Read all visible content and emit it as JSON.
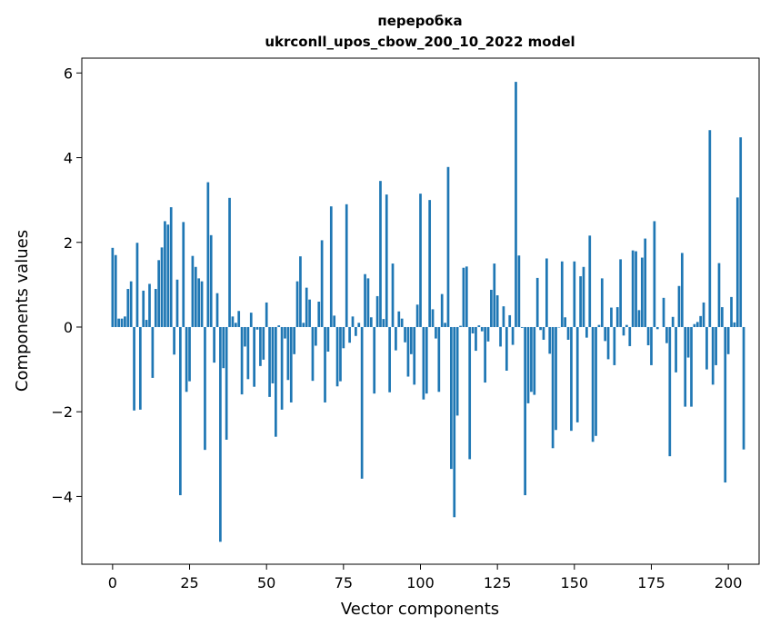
{
  "chart_data": {
    "type": "bar",
    "title": "переробка",
    "subtitle": "ukrconll_upos_cbow_200_10_2022 model",
    "xlabel": "Vector components",
    "ylabel": "Components values",
    "xlim": [
      -10,
      210
    ],
    "ylim": [
      -5.6,
      6.35
    ],
    "xticks": [
      0,
      25,
      50,
      75,
      100,
      125,
      150,
      175,
      200
    ],
    "yticks": [
      -4,
      -2,
      0,
      2,
      4,
      6
    ],
    "ytick_labels": [
      "−4",
      "−2",
      "0",
      "2",
      "4",
      "6"
    ],
    "bar_color": "#1f77b4",
    "grid": false,
    "legend": "none",
    "values": [
      1.87,
      1.7,
      0.2,
      0.2,
      0.25,
      0.9,
      1.08,
      -1.97,
      1.99,
      -1.95,
      0.86,
      0.17,
      1.02,
      -1.2,
      0.9,
      1.58,
      1.88,
      2.5,
      2.42,
      2.83,
      -0.65,
      1.12,
      -3.97,
      2.48,
      -1.53,
      -1.28,
      1.68,
      1.42,
      1.15,
      1.08,
      -2.9,
      3.42,
      2.17,
      -0.84,
      0.8,
      -5.07,
      -0.97,
      -2.66,
      3.05,
      0.25,
      0.1,
      0.38,
      -1.59,
      -0.46,
      -1.23,
      0.34,
      -1.41,
      -0.06,
      -0.92,
      -0.77,
      0.58,
      -1.65,
      -1.33,
      -2.59,
      0.04,
      -1.95,
      -0.27,
      -1.25,
      -1.78,
      -0.64,
      1.08,
      1.67,
      0.1,
      0.93,
      0.65,
      -1.27,
      -0.44,
      0.6,
      2.05,
      -1.78,
      -0.58,
      2.85,
      0.27,
      -1.4,
      -1.28,
      -0.5,
      2.9,
      -0.37,
      0.25,
      -0.21,
      0.1,
      -3.58,
      1.25,
      1.15,
      0.23,
      -1.57,
      0.73,
      3.45,
      0.19,
      3.13,
      -1.54,
      1.5,
      -0.55,
      0.37,
      0.2,
      -0.36,
      -1.17,
      -0.64,
      -1.36,
      0.53,
      3.15,
      -1.71,
      -1.57,
      3.0,
      0.42,
      -0.27,
      -1.53,
      0.78,
      0.1,
      3.78,
      -3.35,
      -4.49,
      -2.09,
      0.03,
      1.4,
      1.43,
      -3.12,
      -0.15,
      -0.56,
      0.04,
      -0.1,
      -1.31,
      -0.34,
      0.88,
      1.5,
      0.75,
      -0.46,
      0.49,
      -1.03,
      0.28,
      -0.42,
      5.79,
      1.69,
      -0.02,
      -3.97,
      -1.8,
      -1.53,
      -1.6,
      1.16,
      -0.07,
      -0.3,
      1.62,
      -0.63,
      -2.86,
      -2.43,
      -0.01,
      1.55,
      0.23,
      -0.3,
      -2.45,
      1.55,
      -2.25,
      1.2,
      1.42,
      -0.25,
      2.16,
      -2.71,
      -2.57,
      0.05,
      1.15,
      -0.33,
      -0.76,
      0.46,
      -0.9,
      0.47,
      1.6,
      -0.2,
      0.05,
      -0.45,
      1.81,
      1.79,
      0.4,
      1.64,
      2.09,
      -0.43,
      -0.9,
      2.5,
      -0.05,
      0.0,
      0.69,
      -0.38,
      -3.05,
      0.24,
      -1.07,
      0.97,
      1.75,
      -1.88,
      -0.72,
      -1.88,
      0.07,
      0.12,
      0.26,
      0.58,
      -1.0,
      4.65,
      -1.36,
      -0.9,
      1.51,
      0.47,
      -3.67,
      -0.64,
      0.71,
      0.11,
      3.06,
      4.48,
      -2.89
    ]
  }
}
